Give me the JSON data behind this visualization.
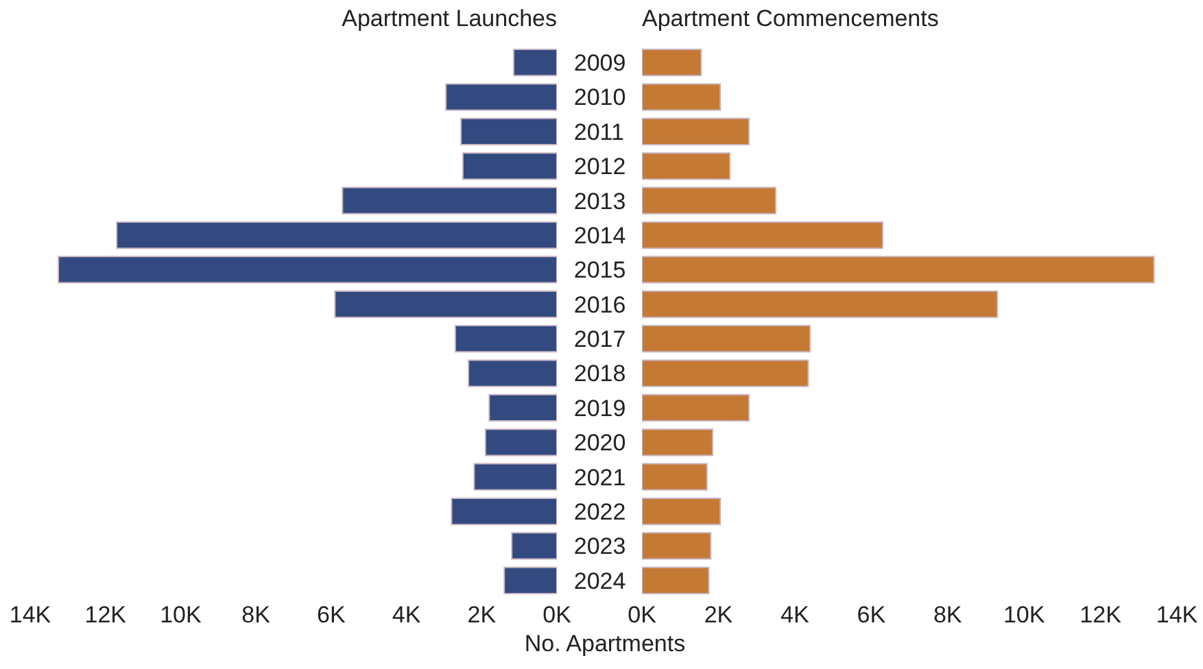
{
  "chart_data": [
    {
      "type": "bar",
      "orientation": "horizontal",
      "title": "Apartment Launches",
      "xlabel": "No. Apartments",
      "color": "#324a80",
      "categories": [
        "2009",
        "2010",
        "2011",
        "2012",
        "2013",
        "2014",
        "2015",
        "2016",
        "2017",
        "2018",
        "2019",
        "2020",
        "2021",
        "2022",
        "2023",
        "2024"
      ],
      "values": [
        1150,
        2950,
        2550,
        2500,
        5700,
        11700,
        13250,
        5900,
        2700,
        2350,
        1800,
        1900,
        2200,
        2800,
        1200,
        1400
      ],
      "xlim": [
        14000,
        0
      ],
      "xticks": [
        {
          "value": 14000,
          "label": "14K"
        },
        {
          "value": 12000,
          "label": "12K"
        },
        {
          "value": 10000,
          "label": "10K"
        },
        {
          "value": 8000,
          "label": "8K"
        },
        {
          "value": 6000,
          "label": "6K"
        },
        {
          "value": 4000,
          "label": "4K"
        },
        {
          "value": 2000,
          "label": "2K"
        },
        {
          "value": 0,
          "label": "0K"
        }
      ]
    },
    {
      "type": "bar",
      "orientation": "horizontal",
      "title": "Apartment Commencements",
      "color": "#c47a35",
      "tick_labels": "x",
      "categories": [
        "2009",
        "2010",
        "2011",
        "2012",
        "2013",
        "2014",
        "2015",
        "2016",
        "2017",
        "2018",
        "2019",
        "2020",
        "2021",
        "2022",
        "2023",
        "2024"
      ],
      "values": [
        1550,
        2050,
        2800,
        2300,
        3500,
        6300,
        13400,
        9300,
        4400,
        4350,
        2800,
        1850,
        1700,
        2050,
        1800,
        1750
      ],
      "xlim": [
        0,
        14000
      ],
      "xticks": [
        {
          "value": 0,
          "label": "0K"
        },
        {
          "value": 2000,
          "label": "2K"
        },
        {
          "value": 4000,
          "label": "4K"
        },
        {
          "value": 6000,
          "label": "6K"
        },
        {
          "value": 8000,
          "label": "8K"
        },
        {
          "value": 10000,
          "label": "10K"
        },
        {
          "value": 12000,
          "label": "12K"
        },
        {
          "value": 14000,
          "label": "14K"
        }
      ]
    }
  ]
}
